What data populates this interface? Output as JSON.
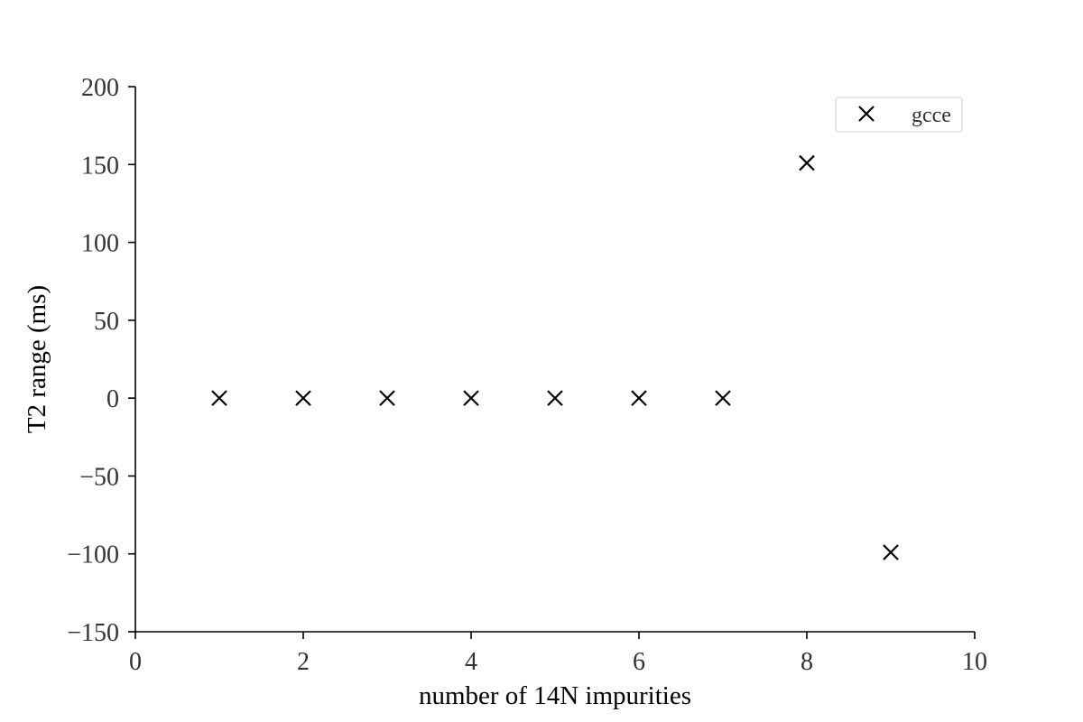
{
  "chart_data": {
    "type": "scatter",
    "title": "",
    "xlabel": "number of 14N impurities",
    "ylabel": "T2 range (ms)",
    "xlim": [
      0,
      10
    ],
    "ylim": [
      -150,
      200
    ],
    "xticks": [
      0,
      2,
      4,
      6,
      8,
      10
    ],
    "yticks": [
      -150,
      -100,
      -50,
      0,
      50,
      100,
      150,
      200
    ],
    "xtick_labels": [
      "0",
      "2",
      "4",
      "6",
      "8",
      "10"
    ],
    "ytick_labels": [
      "−150",
      "−100",
      "−50",
      "0",
      "50",
      "100",
      "150",
      "200"
    ],
    "grid": false,
    "legend_position": "top-right",
    "series": [
      {
        "name": "gcce",
        "marker": "x",
        "color": "#000000",
        "x": [
          1,
          2,
          3,
          4,
          5,
          6,
          7,
          8,
          9
        ],
        "y": [
          0,
          0,
          0,
          0,
          0,
          0,
          0,
          151,
          -99
        ]
      }
    ]
  }
}
